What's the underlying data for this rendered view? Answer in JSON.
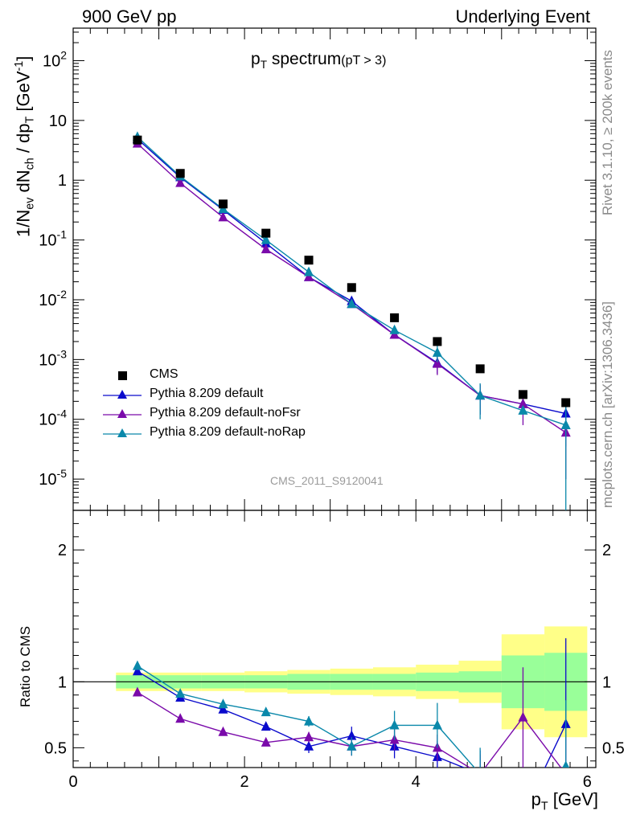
{
  "header": {
    "left": "900 GeV pp",
    "right": "Underlying Event"
  },
  "side_labels": {
    "rivet": "Rivet 3.1.10, ≥ 200k events",
    "mcplots": "mcplots.cern.ch [arXiv:1306.3436]"
  },
  "title": {
    "main": "spectrum",
    "cut": "(pT >  3)"
  },
  "watermark": "CMS_2011_S9120041",
  "axis_text": {
    "ratio_ylabel": "Ratio to CMS",
    "xlabel_unit": "[GeV]",
    "ylabel_unit": "[GeV"
  },
  "chart_data": {
    "type": "scatter",
    "x_label": "p_T [GeV]",
    "y_label": "1/N_ev dN_ch / dp_T [GeV^-1]",
    "xlim": [
      0,
      6.1
    ],
    "main_panel": {
      "y_scale": "log",
      "ylim": [
        3e-06,
        350
      ]
    },
    "ratio_panel": {
      "ylabel": "Ratio to CMS",
      "ylim": [
        0.35,
        2.3
      ],
      "ticks": [
        0.5,
        1,
        2
      ]
    },
    "x_ticks": [
      0,
      2,
      4,
      6
    ],
    "legend_position": "bottom-left",
    "bin_edges": [
      0.5,
      1.0,
      1.5,
      2.0,
      2.5,
      3.0,
      3.5,
      4.0,
      4.5,
      5.0,
      5.5,
      6.0
    ],
    "data": {
      "name": "CMS",
      "x": [
        0.75,
        1.25,
        1.75,
        2.25,
        2.75,
        3.25,
        3.75,
        4.25,
        4.75,
        5.25,
        5.75
      ],
      "y": [
        4.7,
        1.3,
        0.4,
        0.13,
        0.046,
        0.016,
        0.005,
        0.002,
        0.0007,
        0.00026,
        0.00019
      ],
      "band_inner": [
        0.05,
        0.05,
        0.05,
        0.05,
        0.06,
        0.06,
        0.06,
        0.07,
        0.08,
        0.2,
        0.22
      ],
      "band_outer": [
        0.07,
        0.07,
        0.07,
        0.08,
        0.09,
        0.1,
        0.11,
        0.13,
        0.16,
        0.36,
        0.42
      ]
    },
    "series": [
      {
        "name": "Pythia 8.209 default",
        "color": "#0a0acc",
        "y": [
          4.9,
          1.12,
          0.32,
          0.088,
          0.024,
          0.0095,
          0.0026,
          0.00088,
          0.00025,
          0.00018,
          0.000125
        ],
        "yerr": [
          0.0,
          0.0,
          0.0,
          0.0,
          0.0,
          0.0,
          0.0003,
          0.0003,
          0.00013,
          0.0,
          9e-05
        ],
        "ratio": [
          1.08,
          0.88,
          0.79,
          0.66,
          0.51,
          0.59,
          0.51,
          0.43,
          0.3,
          0.0,
          0.68
        ],
        "ratio_err": [
          0.01,
          0.01,
          0.01,
          0.03,
          0.05,
          0.07,
          0.09,
          0.12,
          0.18,
          0.0,
          0.65
        ]
      },
      {
        "name": "Pythia 8.209 default-noFsr",
        "color": "#7a0aaa",
        "y": [
          4.1,
          0.9,
          0.24,
          0.07,
          0.024,
          0.0085,
          0.0026,
          0.00085,
          0.00025,
          0.00018,
          6e-05
        ],
        "yerr": [
          0.0,
          0.0,
          0.0,
          0.0,
          0.0,
          0.0,
          0.0003,
          0.0003,
          0.00013,
          0.0001,
          5e-05
        ],
        "ratio": [
          0.92,
          0.72,
          0.62,
          0.54,
          0.58,
          0.51,
          0.56,
          0.5,
          0.3,
          0.73,
          0.3
        ],
        "ratio_err": [
          0.01,
          0.01,
          0.01,
          0.02,
          0.04,
          0.07,
          0.08,
          0.1,
          0.15,
          0.38,
          0.3
        ]
      },
      {
        "name": "Pythia 8.209 default-noRap",
        "color": "#0a88aa",
        "y": [
          5.3,
          1.16,
          0.33,
          0.1,
          0.029,
          0.0085,
          0.0031,
          0.0013,
          0.00025,
          0.00014,
          8e-05
        ],
        "yerr": [
          0.0,
          0.0,
          0.0,
          0.0,
          0.0,
          0.0,
          0.0004,
          0.0004,
          0.00015,
          0.0,
          9e-05
        ],
        "ratio": [
          1.12,
          0.91,
          0.83,
          0.77,
          0.7,
          0.51,
          0.67,
          0.67,
          0.3,
          0.0,
          0.36
        ],
        "ratio_err": [
          0.01,
          0.01,
          0.01,
          0.02,
          0.04,
          0.07,
          0.11,
          0.17,
          0.2,
          0.0,
          0.5
        ]
      }
    ]
  }
}
